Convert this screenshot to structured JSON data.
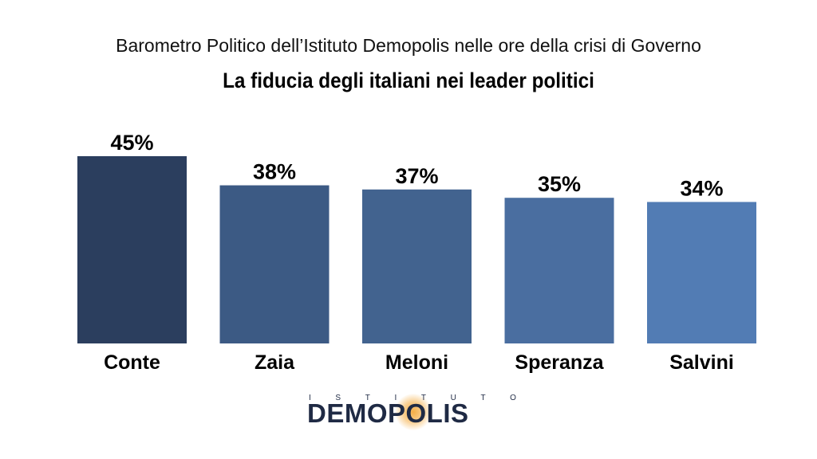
{
  "header": {
    "subtitle": "Barometro Politico dell’Istituto Demopolis nelle ore della crisi di Governo",
    "title": "La fiducia degli italiani nei leader politici"
  },
  "chart_data": {
    "type": "bar",
    "categories": [
      "Conte",
      "Zaia",
      "Meloni",
      "Speranza",
      "Salvini"
    ],
    "values": [
      45,
      38,
      37,
      35,
      34
    ],
    "value_labels": [
      "45%",
      "38%",
      "37%",
      "35%",
      "34%"
    ],
    "colors": [
      "#2b3e5e",
      "#3c5a84",
      "#42638f",
      "#4a6ea0",
      "#527cb4"
    ],
    "title": "La fiducia degli italiani nei leader politici",
    "xlabel": "",
    "ylabel": "",
    "ylim": [
      0,
      45
    ],
    "grid": false,
    "legend": "none"
  },
  "logo": {
    "top_letters": [
      "I",
      "S",
      "T",
      "I",
      "T",
      "U",
      "T",
      "O"
    ],
    "main_text": "DEMOPOLIS",
    "accent_color": "#f5aa3c",
    "text_color": "#1f2a44"
  }
}
